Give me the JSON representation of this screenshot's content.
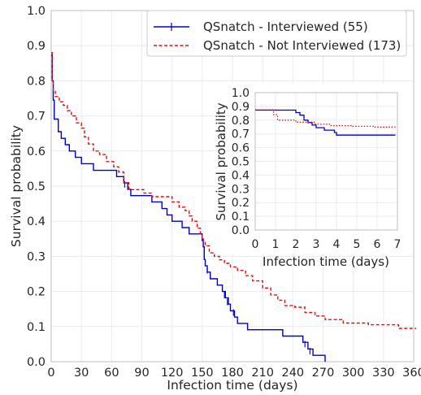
{
  "chart_data": [
    {
      "type": "line",
      "title": "",
      "xlabel": "Infection time (days)",
      "ylabel": "Survival probability",
      "xlim": [
        0,
        360
      ],
      "ylim": [
        0,
        1.0
      ],
      "xticks": [
        "0",
        "30",
        "60",
        "90",
        "120",
        "150",
        "180",
        "210",
        "240",
        "270",
        "300",
        "330",
        "360"
      ],
      "yticks": [
        "0.0",
        "0.1",
        "0.2",
        "0.3",
        "0.4",
        "0.5",
        "0.6",
        "0.7",
        "0.8",
        "0.9",
        "1.0"
      ],
      "grid": true,
      "legend_position": "top-right",
      "series": [
        {
          "name": "QSnatch - Interviewed (55)",
          "color": "#0000cc",
          "style": "solid",
          "marker": "+",
          "steps": [
            [
              0,
              0.873
            ],
            [
              1,
              0.8
            ],
            [
              2,
              0.745
            ],
            [
              3,
              0.691
            ],
            [
              7,
              0.655
            ],
            [
              10,
              0.636
            ],
            [
              14,
              0.618
            ],
            [
              18,
              0.6
            ],
            [
              24,
              0.582
            ],
            [
              30,
              0.564
            ],
            [
              42,
              0.545
            ],
            [
              65,
              0.527
            ],
            [
              72,
              0.509
            ],
            [
              76,
              0.491
            ],
            [
              79,
              0.473
            ],
            [
              100,
              0.455
            ],
            [
              110,
              0.436
            ],
            [
              115,
              0.418
            ],
            [
              120,
              0.4
            ],
            [
              130,
              0.382
            ],
            [
              137,
              0.364
            ],
            [
              150,
              0.345
            ],
            [
              151,
              0.327
            ],
            [
              152,
              0.291
            ],
            [
              153,
              0.273
            ],
            [
              155,
              0.255
            ],
            [
              158,
              0.236
            ],
            [
              165,
              0.218
            ],
            [
              170,
              0.2
            ],
            [
              173,
              0.182
            ],
            [
              176,
              0.164
            ],
            [
              178,
              0.145
            ],
            [
              182,
              0.127
            ],
            [
              185,
              0.109
            ],
            [
              195,
              0.091
            ],
            [
              230,
              0.073
            ],
            [
              250,
              0.055
            ],
            [
              255,
              0.036
            ],
            [
              260,
              0.018
            ],
            [
              272,
              0.0
            ]
          ],
          "censored": [
            [
              1,
              0.84
            ],
            [
              2,
              0.76
            ],
            [
              3,
              0.72
            ],
            [
              73,
              0.505
            ],
            [
              152,
              0.31
            ],
            [
              155,
              0.26
            ],
            [
              172,
              0.19
            ],
            [
              175,
              0.17
            ],
            [
              181,
              0.14
            ],
            [
              252,
              0.05
            ],
            [
              257,
              0.03
            ]
          ]
        },
        {
          "name": "QSnatch - Not Interviewed (173)",
          "color": "#dd1111",
          "style": "dashed",
          "steps": [
            [
              0,
              0.88
            ],
            [
              1,
              0.8
            ],
            [
              2,
              0.77
            ],
            [
              4,
              0.755
            ],
            [
              8,
              0.74
            ],
            [
              12,
              0.73
            ],
            [
              16,
              0.715
            ],
            [
              20,
              0.7
            ],
            [
              25,
              0.68
            ],
            [
              30,
              0.665
            ],
            [
              33,
              0.64
            ],
            [
              37,
              0.62
            ],
            [
              42,
              0.6
            ],
            [
              48,
              0.59
            ],
            [
              55,
              0.57
            ],
            [
              62,
              0.555
            ],
            [
              67,
              0.54
            ],
            [
              72,
              0.51
            ],
            [
              77,
              0.49
            ],
            [
              92,
              0.48
            ],
            [
              100,
              0.47
            ],
            [
              108,
              0.47
            ],
            [
              120,
              0.455
            ],
            [
              127,
              0.44
            ],
            [
              133,
              0.43
            ],
            [
              137,
              0.415
            ],
            [
              140,
              0.4
            ],
            [
              145,
              0.38
            ],
            [
              148,
              0.36
            ],
            [
              150,
              0.35
            ],
            [
              151,
              0.34
            ],
            [
              153,
              0.33
            ],
            [
              157,
              0.31
            ],
            [
              162,
              0.3
            ],
            [
              167,
              0.29
            ],
            [
              172,
              0.28
            ],
            [
              178,
              0.27
            ],
            [
              185,
              0.26
            ],
            [
              193,
              0.245
            ],
            [
              200,
              0.23
            ],
            [
              210,
              0.21
            ],
            [
              218,
              0.19
            ],
            [
              225,
              0.175
            ],
            [
              232,
              0.16
            ],
            [
              242,
              0.155
            ],
            [
              252,
              0.14
            ],
            [
              262,
              0.13
            ],
            [
              272,
              0.12
            ],
            [
              290,
              0.11
            ],
            [
              315,
              0.105
            ],
            [
              345,
              0.095
            ],
            [
              362,
              0.093
            ]
          ]
        }
      ]
    },
    {
      "type": "line",
      "title": "",
      "xlabel": "Infection time (days)",
      "ylabel": "Survival probability",
      "xlim": [
        0,
        7
      ],
      "ylim": [
        0,
        1.0
      ],
      "xticks": [
        "0",
        "1",
        "2",
        "3",
        "4",
        "5",
        "6",
        "7"
      ],
      "yticks": [
        "0.0",
        "0.1",
        "0.2",
        "0.3",
        "0.4",
        "0.5",
        "0.6",
        "0.7",
        "0.8",
        "0.9",
        "1.0"
      ],
      "grid": true,
      "series": [
        {
          "color": "#0000cc",
          "style": "solid",
          "steps": [
            [
              0,
              0.873
            ],
            [
              2.0,
              0.855
            ],
            [
              2.2,
              0.836
            ],
            [
              2.4,
              0.8
            ],
            [
              2.6,
              0.782
            ],
            [
              2.8,
              0.764
            ],
            [
              3.0,
              0.745
            ],
            [
              3.4,
              0.727
            ],
            [
              3.9,
              0.71
            ],
            [
              4.0,
              0.691
            ],
            [
              6.9,
              0.691
            ]
          ]
        },
        {
          "color": "#dd1111",
          "style": "dotted",
          "steps": [
            [
              0,
              0.875
            ],
            [
              0.9,
              0.84
            ],
            [
              1.1,
              0.8
            ],
            [
              2.0,
              0.785
            ],
            [
              2.9,
              0.77
            ],
            [
              3.7,
              0.76
            ],
            [
              4.8,
              0.755
            ],
            [
              5.8,
              0.75
            ],
            [
              6.9,
              0.75
            ]
          ]
        }
      ]
    }
  ]
}
